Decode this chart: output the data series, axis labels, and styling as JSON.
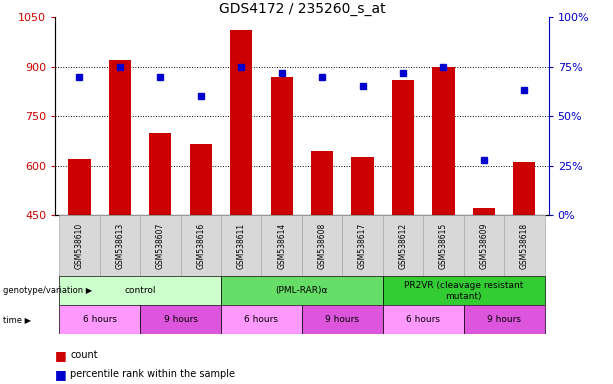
{
  "title": "GDS4172 / 235260_s_at",
  "samples": [
    "GSM538610",
    "GSM538613",
    "GSM538607",
    "GSM538616",
    "GSM538611",
    "GSM538614",
    "GSM538608",
    "GSM538617",
    "GSM538612",
    "GSM538615",
    "GSM538609",
    "GSM538618"
  ],
  "bar_values": [
    620,
    920,
    700,
    665,
    1010,
    870,
    645,
    625,
    860,
    900,
    470,
    610
  ],
  "dot_values_pct": [
    70,
    75,
    70,
    60,
    75,
    72,
    70,
    65,
    72,
    75,
    28,
    63
  ],
  "y_min": 450,
  "y_max": 1050,
  "y_ticks": [
    450,
    600,
    750,
    900,
    1050
  ],
  "y_ticks_right": [
    0,
    25,
    50,
    75,
    100
  ],
  "bar_color": "#cc0000",
  "dot_color": "#0000cc",
  "bar_bottom": 450,
  "geno_data": [
    {
      "label": "control",
      "start": 0,
      "end": 4,
      "color": "#ccffcc"
    },
    {
      "label": "(PML-RAR)α",
      "start": 4,
      "end": 8,
      "color": "#66dd66"
    },
    {
      "label": "PR2VR (cleavage resistant\nmutant)",
      "start": 8,
      "end": 12,
      "color": "#33cc33"
    }
  ],
  "time_data": [
    {
      "label": "6 hours",
      "start": 0,
      "end": 2,
      "color": "#ff99ff"
    },
    {
      "label": "9 hours",
      "start": 2,
      "end": 4,
      "color": "#dd55dd"
    },
    {
      "label": "6 hours",
      "start": 4,
      "end": 6,
      "color": "#ff99ff"
    },
    {
      "label": "9 hours",
      "start": 6,
      "end": 8,
      "color": "#dd55dd"
    },
    {
      "label": "6 hours",
      "start": 8,
      "end": 10,
      "color": "#ff99ff"
    },
    {
      "label": "9 hours",
      "start": 10,
      "end": 12,
      "color": "#dd55dd"
    }
  ],
  "sample_bg_color": "#d8d8d8",
  "legend_count_color": "#cc0000",
  "legend_dot_color": "#0000cc",
  "tick_label_color_left": "#cc0000",
  "tick_label_color_right": "#0000cc"
}
